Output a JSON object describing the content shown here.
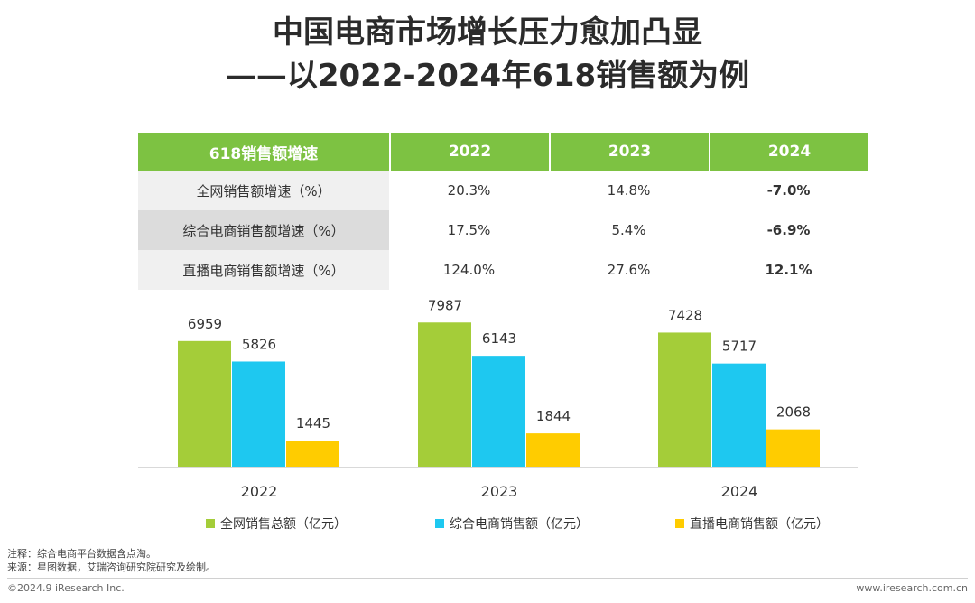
{
  "title": {
    "line1": "中国电商市场增长压力愈加凸显",
    "line2": "——以2022-2024年618销售额为例"
  },
  "table": {
    "header": [
      "618销售额增速",
      "2022",
      "2023",
      "2024"
    ],
    "rows": [
      {
        "label": "全网销售额增速（%）",
        "values": [
          "20.3%",
          "14.8%",
          "-7.0%"
        ]
      },
      {
        "label": "综合电商销售额增速（%）",
        "values": [
          "17.5%",
          "5.4%",
          "-6.9%"
        ]
      },
      {
        "label": "直播电商销售额增速（%）",
        "values": [
          "124.0%",
          "27.6%",
          "12.1%"
        ]
      }
    ]
  },
  "chart_data": {
    "type": "bar",
    "categories": [
      "2022",
      "2023",
      "2024"
    ],
    "series": [
      {
        "name": "全网销售总额（亿元）",
        "values": [
          6959,
          7987,
          7428
        ],
        "color": "#a4cd39"
      },
      {
        "name": "综合电商销售额（亿元）",
        "values": [
          5826,
          6143,
          5717
        ],
        "color": "#1ec8f0"
      },
      {
        "name": "直播电商销售额（亿元）",
        "values": [
          1445,
          1844,
          2068
        ],
        "color": "#ffcc00"
      }
    ],
    "ylim": [
      0,
      8000
    ],
    "grid": false,
    "legend": "bottom"
  },
  "footer": {
    "note": "注释：综合电商平台数据含点淘。",
    "source": "来源：星图数据，艾瑞咨询研究院研究及绘制。",
    "copyright": "©2024.9 iResearch Inc.",
    "website": "www.iresearch.com.cn"
  }
}
